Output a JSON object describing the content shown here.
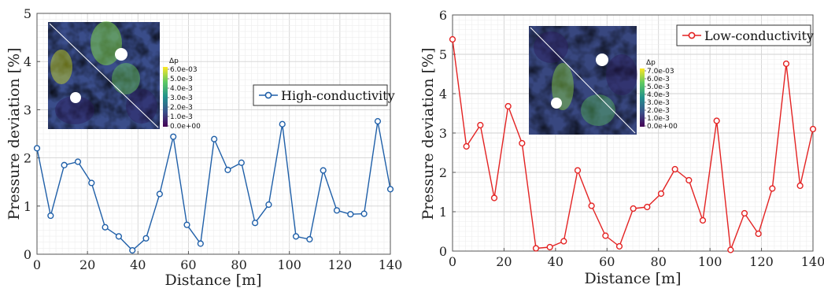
{
  "chart_data": [
    {
      "type": "line",
      "x": [
        0,
        5.4,
        10.8,
        16.2,
        21.6,
        27,
        32.4,
        37.8,
        43.2,
        48.6,
        54,
        59.4,
        64.8,
        70.2,
        75.6,
        81,
        86.4,
        91.8,
        97.2,
        102.6,
        108,
        113.4,
        118.8,
        124.2,
        129.6,
        135,
        140.4
      ],
      "series": [
        {
          "name": "High-conductivity",
          "color": "#1f5fa8",
          "values": [
            2.2,
            0.8,
            1.85,
            1.92,
            1.48,
            0.56,
            0.37,
            0.08,
            0.33,
            1.25,
            2.44,
            0.61,
            0.22,
            2.39,
            1.75,
            1.9,
            0.65,
            1.03,
            2.7,
            0.37,
            0.31,
            1.74,
            0.91,
            0.83,
            0.84,
            2.76,
            1.35
          ]
        }
      ],
      "xlabel": "Distance [m]",
      "ylabel": "Pressure deviation [%]",
      "xlim": [
        0,
        140
      ],
      "ylim": [
        0,
        5
      ],
      "xticks": [
        "0",
        "20",
        "40",
        "60",
        "80",
        "100",
        "120",
        "140"
      ],
      "yticks": [
        "0",
        "1",
        "2",
        "3",
        "4",
        "5"
      ],
      "grid": true,
      "legend_position": "right",
      "inset": {
        "colorbar_title": "Δp",
        "colorbar_labels": [
          "6.0e-03",
          "5.0e-3",
          "4.0e-3",
          "3.0e-3",
          "2.0e-3",
          "1.0e-3",
          "0.0e+00"
        ]
      }
    },
    {
      "type": "line",
      "x": [
        0,
        5.4,
        10.8,
        16.2,
        21.6,
        27,
        32.4,
        37.8,
        43.2,
        48.6,
        54,
        59.4,
        64.8,
        70.2,
        75.6,
        81,
        86.4,
        91.8,
        97.2,
        102.6,
        108,
        113.4,
        118.8,
        124.2,
        129.6,
        135,
        140.4
      ],
      "series": [
        {
          "name": "Low-conductivity",
          "color": "#e32222",
          "values": [
            5.38,
            2.66,
            3.2,
            1.35,
            3.68,
            2.74,
            0.07,
            0.1,
            0.25,
            2.05,
            1.15,
            0.39,
            0.12,
            1.08,
            1.12,
            1.46,
            2.08,
            1.8,
            0.78,
            3.31,
            0.03,
            0.96,
            0.44,
            1.59,
            4.76,
            1.66,
            3.1
          ]
        }
      ],
      "xlabel": "Distance [m]",
      "ylabel": "Pressure deviation [%]",
      "xlim": [
        0,
        140
      ],
      "ylim": [
        0,
        6
      ],
      "xticks": [
        "0",
        "20",
        "40",
        "60",
        "80",
        "100",
        "120",
        "140"
      ],
      "yticks": [
        "0",
        "1",
        "2",
        "3",
        "4",
        "5",
        "6"
      ],
      "grid": true,
      "legend_position": "top-right",
      "inset": {
        "colorbar_title": "Δp",
        "colorbar_labels": [
          "7.0e-03",
          "6.0e-3",
          "5.0e-3",
          "4.0e-3",
          "3.0e-3",
          "2.0e-3",
          "1.0e-3",
          "0.0e+00"
        ]
      }
    }
  ]
}
